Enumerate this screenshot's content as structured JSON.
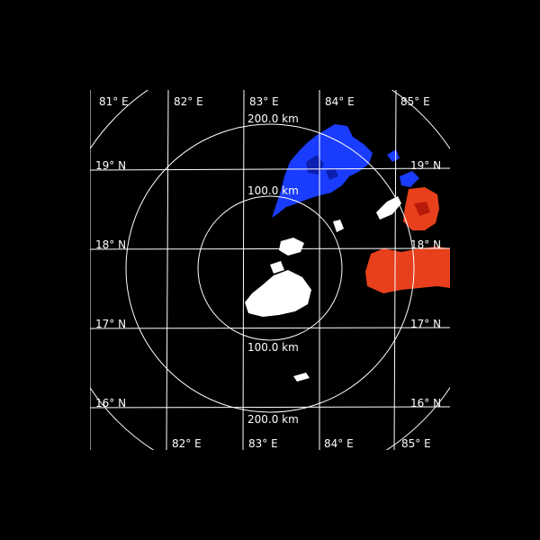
{
  "map": {
    "top_lon_labels": [
      "81° E",
      "82° E",
      "83° E",
      "84° E",
      "85° E"
    ],
    "bottom_lon_labels": [
      "82° E",
      "83° E",
      "84° E",
      "85° E"
    ],
    "left_lat_labels": [
      "19° N",
      "18° N",
      "17° N",
      "16° N"
    ],
    "right_lat_labels": [
      "19° N",
      "18° N",
      "17° N",
      "16° N"
    ],
    "range_rings": {
      "outer_top": "200.0 km",
      "inner_top": "100.0 km",
      "inner_bottom": "100.0 km",
      "outer_bottom": "200.0 km"
    },
    "colors": {
      "background": "#000000",
      "grid": "#ffffff",
      "approaching": "#1a3cff",
      "receding": "#e8401c",
      "near_zero": "#ffffff"
    }
  }
}
